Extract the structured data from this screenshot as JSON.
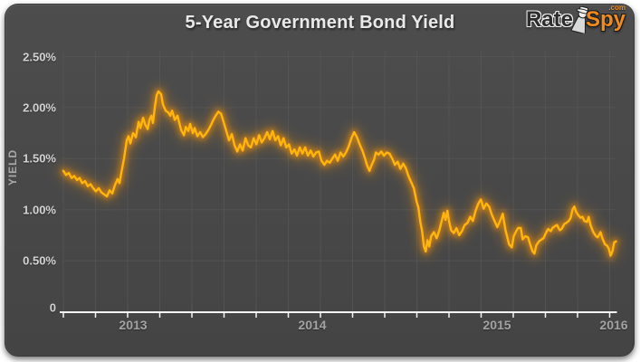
{
  "header": {
    "title": "5-Year Government Bond Yield",
    "logo": {
      "rate": "Rate",
      "spy": "Spy",
      "tld": ".com"
    }
  },
  "colors": {
    "panel_bg": "#484848",
    "grid": "#575757",
    "axis": "#f5f5f5",
    "line_core": "#ffb40e",
    "line_glow": "#ff9400",
    "title_text": "#e9e9e9",
    "y_tick_text": "#d3d3d3",
    "x_tick_text": "#a3a3a3",
    "logo_orange": "#f28b1e",
    "logo_dark": "#2d2d2d"
  },
  "chart_data": {
    "type": "line",
    "title": "5-Year Government Bond Yield",
    "xlabel": "",
    "ylabel": "YIELD",
    "ylim": [
      0,
      2.5
    ],
    "y_ticks": [
      "2.50%",
      "2.00%",
      "1.50%",
      "1.00%",
      "0.50%",
      "0"
    ],
    "y_tick_values": [
      2.5,
      2.0,
      1.5,
      1.0,
      0.5,
      0
    ],
    "x_ticks": [
      "2013",
      "2014",
      "2015",
      "2016"
    ],
    "x_domain_years": [
      2013.117,
      2016.152
    ],
    "grid": "on",
    "legend": "none",
    "series": [
      {
        "name": "5-Year Government Bond Yield (%)",
        "points": [
          [
            2013.117,
            1.38
          ],
          [
            2013.132,
            1.34
          ],
          [
            2013.147,
            1.36
          ],
          [
            2013.162,
            1.31
          ],
          [
            2013.177,
            1.33
          ],
          [
            2013.192,
            1.29
          ],
          [
            2013.206,
            1.31
          ],
          [
            2013.221,
            1.26
          ],
          [
            2013.236,
            1.28
          ],
          [
            2013.251,
            1.23
          ],
          [
            2013.266,
            1.25
          ],
          [
            2013.281,
            1.21
          ],
          [
            2013.296,
            1.18
          ],
          [
            2013.311,
            1.21
          ],
          [
            2013.326,
            1.17
          ],
          [
            2013.341,
            1.15
          ],
          [
            2013.356,
            1.13
          ],
          [
            2013.371,
            1.19
          ],
          [
            2013.386,
            1.16
          ],
          [
            2013.4,
            1.24
          ],
          [
            2013.415,
            1.3
          ],
          [
            2013.425,
            1.26
          ],
          [
            2013.435,
            1.36
          ],
          [
            2013.45,
            1.5
          ],
          [
            2013.465,
            1.68
          ],
          [
            2013.475,
            1.72
          ],
          [
            2013.485,
            1.65
          ],
          [
            2013.5,
            1.75
          ],
          [
            2013.515,
            1.71
          ],
          [
            2013.53,
            1.86
          ],
          [
            2013.54,
            1.8
          ],
          [
            2013.555,
            1.9
          ],
          [
            2013.565,
            1.84
          ],
          [
            2013.58,
            1.79
          ],
          [
            2013.59,
            1.88
          ],
          [
            2013.6,
            1.92
          ],
          [
            2013.609,
            1.85
          ],
          [
            2013.619,
            2.0
          ],
          [
            2013.629,
            2.12
          ],
          [
            2013.639,
            2.16
          ],
          [
            2013.654,
            2.13
          ],
          [
            2013.664,
            2.03
          ],
          [
            2013.679,
            1.97
          ],
          [
            2013.694,
            1.95
          ],
          [
            2013.704,
            1.92
          ],
          [
            2013.714,
            1.97
          ],
          [
            2013.729,
            1.88
          ],
          [
            2013.744,
            1.92
          ],
          [
            2013.754,
            1.85
          ],
          [
            2013.764,
            1.78
          ],
          [
            2013.779,
            1.73
          ],
          [
            2013.789,
            1.81
          ],
          [
            2013.803,
            1.77
          ],
          [
            2013.813,
            1.84
          ],
          [
            2013.828,
            1.75
          ],
          [
            2013.838,
            1.8
          ],
          [
            2013.853,
            1.72
          ],
          [
            2013.868,
            1.76
          ],
          [
            2013.883,
            1.71
          ],
          [
            2013.898,
            1.74
          ],
          [
            2013.913,
            1.78
          ],
          [
            2013.928,
            1.83
          ],
          [
            2013.938,
            1.87
          ],
          [
            2013.953,
            1.92
          ],
          [
            2013.968,
            1.96
          ],
          [
            2013.983,
            1.94
          ],
          [
            2013.997,
            1.86
          ],
          [
            2014.012,
            1.77
          ],
          [
            2014.027,
            1.68
          ],
          [
            2014.042,
            1.74
          ],
          [
            2014.057,
            1.63
          ],
          [
            2014.072,
            1.57
          ],
          [
            2014.087,
            1.64
          ],
          [
            2014.102,
            1.58
          ],
          [
            2014.117,
            1.7
          ],
          [
            2014.132,
            1.63
          ],
          [
            2014.147,
            1.61
          ],
          [
            2014.162,
            1.7
          ],
          [
            2014.177,
            1.64
          ],
          [
            2014.192,
            1.73
          ],
          [
            2014.206,
            1.66
          ],
          [
            2014.221,
            1.7
          ],
          [
            2014.236,
            1.76
          ],
          [
            2014.251,
            1.69
          ],
          [
            2014.266,
            1.77
          ],
          [
            2014.281,
            1.68
          ],
          [
            2014.296,
            1.72
          ],
          [
            2014.311,
            1.63
          ],
          [
            2014.326,
            1.7
          ],
          [
            2014.341,
            1.61
          ],
          [
            2014.356,
            1.64
          ],
          [
            2014.371,
            1.55
          ],
          [
            2014.386,
            1.59
          ],
          [
            2014.4,
            1.53
          ],
          [
            2014.415,
            1.61
          ],
          [
            2014.43,
            1.55
          ],
          [
            2014.445,
            1.61
          ],
          [
            2014.46,
            1.53
          ],
          [
            2014.475,
            1.58
          ],
          [
            2014.49,
            1.52
          ],
          [
            2014.505,
            1.56
          ],
          [
            2014.52,
            1.57
          ],
          [
            2014.535,
            1.48
          ],
          [
            2014.55,
            1.44
          ],
          [
            2014.565,
            1.48
          ],
          [
            2014.58,
            1.46
          ],
          [
            2014.594,
            1.5
          ],
          [
            2014.609,
            1.54
          ],
          [
            2014.624,
            1.48
          ],
          [
            2014.639,
            1.56
          ],
          [
            2014.654,
            1.52
          ],
          [
            2014.669,
            1.56
          ],
          [
            2014.684,
            1.62
          ],
          [
            2014.699,
            1.7
          ],
          [
            2014.714,
            1.76
          ],
          [
            2014.729,
            1.71
          ],
          [
            2014.744,
            1.64
          ],
          [
            2014.759,
            1.58
          ],
          [
            2014.774,
            1.5
          ],
          [
            2014.784,
            1.44
          ],
          [
            2014.798,
            1.38
          ],
          [
            2014.808,
            1.43
          ],
          [
            2014.823,
            1.49
          ],
          [
            2014.833,
            1.56
          ],
          [
            2014.848,
            1.54
          ],
          [
            2014.863,
            1.57
          ],
          [
            2014.878,
            1.53
          ],
          [
            2014.893,
            1.56
          ],
          [
            2014.908,
            1.55
          ],
          [
            2014.923,
            1.5
          ],
          [
            2014.938,
            1.44
          ],
          [
            2014.953,
            1.47
          ],
          [
            2014.968,
            1.4
          ],
          [
            2014.983,
            1.45
          ],
          [
            2014.997,
            1.41
          ],
          [
            2015.012,
            1.33
          ],
          [
            2015.027,
            1.27
          ],
          [
            2015.042,
            1.21
          ],
          [
            2015.057,
            1.08
          ],
          [
            2015.067,
            1.02
          ],
          [
            2015.077,
            0.88
          ],
          [
            2015.087,
            0.79
          ],
          [
            2015.097,
            0.64
          ],
          [
            2015.107,
            0.59
          ],
          [
            2015.117,
            0.7
          ],
          [
            2015.127,
            0.64
          ],
          [
            2015.137,
            0.74
          ],
          [
            2015.152,
            0.78
          ],
          [
            2015.167,
            0.72
          ],
          [
            2015.182,
            0.8
          ],
          [
            2015.196,
            0.9
          ],
          [
            2015.206,
            0.97
          ],
          [
            2015.216,
            0.9
          ],
          [
            2015.226,
            0.99
          ],
          [
            2015.236,
            0.88
          ],
          [
            2015.246,
            0.8
          ],
          [
            2015.261,
            0.77
          ],
          [
            2015.276,
            0.82
          ],
          [
            2015.291,
            0.75
          ],
          [
            2015.306,
            0.79
          ],
          [
            2015.321,
            0.85
          ],
          [
            2015.336,
            0.87
          ],
          [
            2015.351,
            0.93
          ],
          [
            2015.366,
            0.89
          ],
          [
            2015.381,
            0.99
          ],
          [
            2015.396,
            1.06
          ],
          [
            2015.41,
            1.1
          ],
          [
            2015.425,
            1.01
          ],
          [
            2015.44,
            1.06
          ],
          [
            2015.455,
            1.03
          ],
          [
            2015.47,
            0.95
          ],
          [
            2015.485,
            0.89
          ],
          [
            2015.5,
            0.83
          ],
          [
            2015.515,
            0.89
          ],
          [
            2015.53,
            0.96
          ],
          [
            2015.545,
            0.8
          ],
          [
            2015.555,
            0.73
          ],
          [
            2015.565,
            0.66
          ],
          [
            2015.58,
            0.63
          ],
          [
            2015.59,
            0.74
          ],
          [
            2015.604,
            0.79
          ],
          [
            2015.614,
            0.82
          ],
          [
            2015.629,
            0.82
          ],
          [
            2015.639,
            0.71
          ],
          [
            2015.654,
            0.74
          ],
          [
            2015.669,
            0.73
          ],
          [
            2015.684,
            0.64
          ],
          [
            2015.694,
            0.59
          ],
          [
            2015.704,
            0.57
          ],
          [
            2015.714,
            0.65
          ],
          [
            2015.729,
            0.69
          ],
          [
            2015.744,
            0.71
          ],
          [
            2015.754,
            0.72
          ],
          [
            2015.769,
            0.78
          ],
          [
            2015.779,
            0.81
          ],
          [
            2015.794,
            0.79
          ],
          [
            2015.803,
            0.82
          ],
          [
            2015.818,
            0.84
          ],
          [
            2015.828,
            0.85
          ],
          [
            2015.843,
            0.8
          ],
          [
            2015.853,
            0.81
          ],
          [
            2015.868,
            0.86
          ],
          [
            2015.878,
            0.87
          ],
          [
            2015.893,
            0.89
          ],
          [
            2015.903,
            0.92
          ],
          [
            2015.913,
            1.0
          ],
          [
            2015.923,
            1.03
          ],
          [
            2015.933,
            0.98
          ],
          [
            2015.943,
            0.95
          ],
          [
            2015.958,
            0.92
          ],
          [
            2015.968,
            0.93
          ],
          [
            2015.978,
            0.89
          ],
          [
            2015.993,
            0.88
          ],
          [
            2016.002,
            0.93
          ],
          [
            2016.012,
            0.85
          ],
          [
            2016.027,
            0.78
          ],
          [
            2016.042,
            0.74
          ],
          [
            2016.052,
            0.73
          ],
          [
            2016.067,
            0.78
          ],
          [
            2016.077,
            0.72
          ],
          [
            2016.092,
            0.66
          ],
          [
            2016.102,
            0.65
          ],
          [
            2016.112,
            0.62
          ],
          [
            2016.122,
            0.55
          ],
          [
            2016.132,
            0.59
          ],
          [
            2016.142,
            0.68
          ],
          [
            2016.152,
            0.69
          ]
        ]
      }
    ]
  }
}
